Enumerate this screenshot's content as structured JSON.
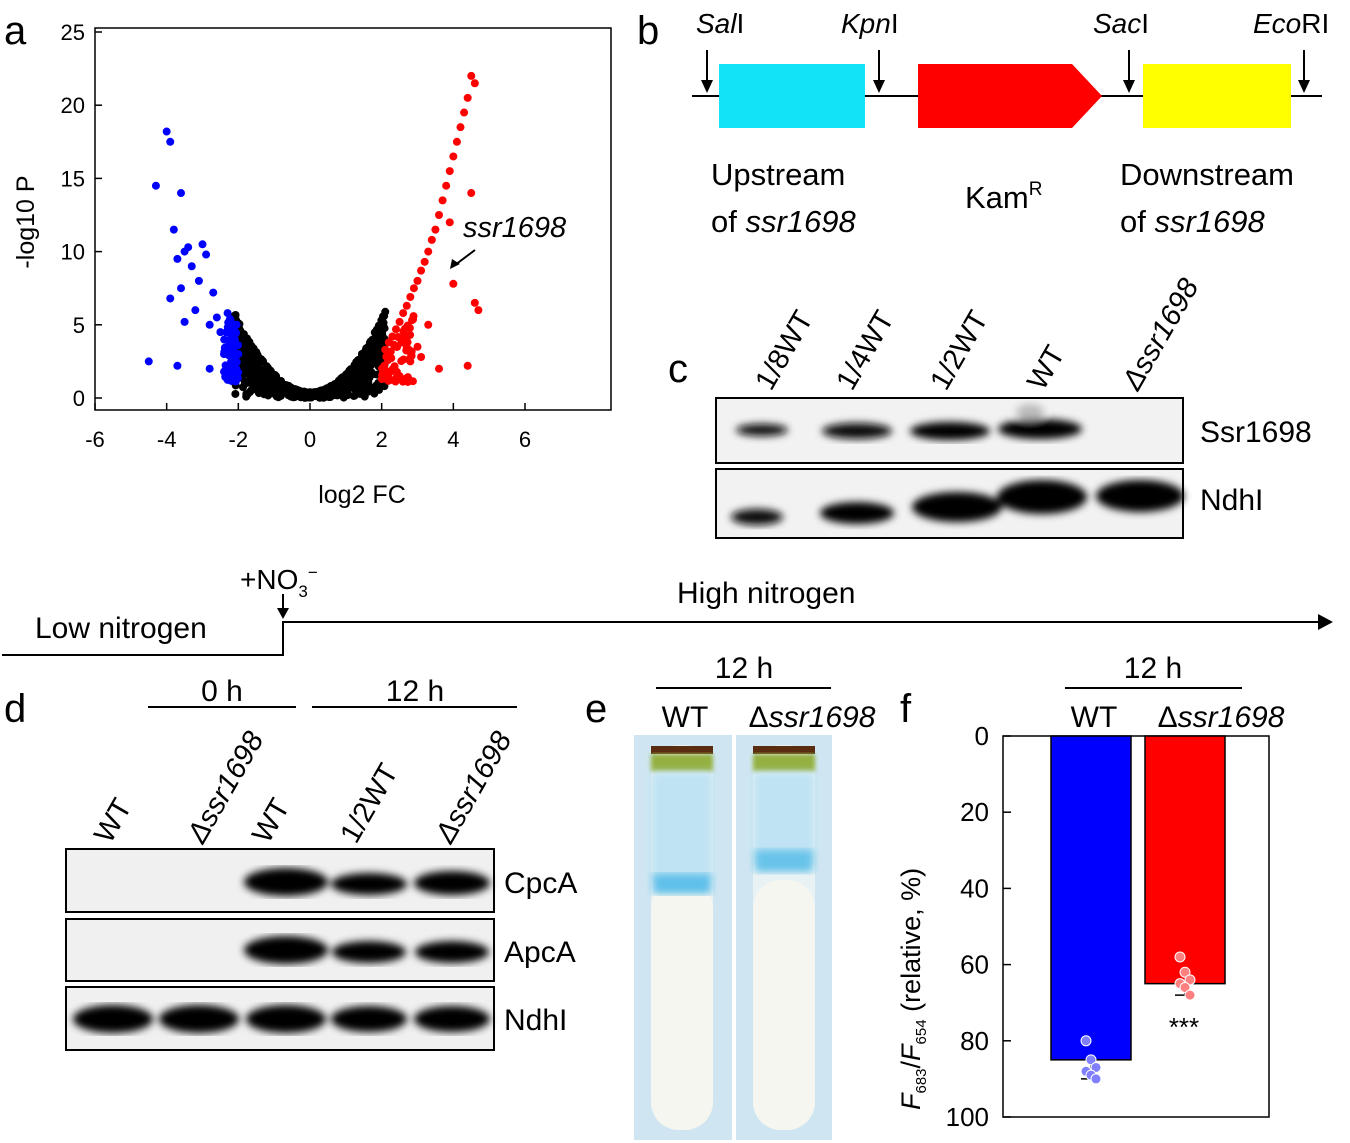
{
  "panel_letters": {
    "a": "a",
    "b": "b",
    "c": "c",
    "d": "d",
    "e": "e",
    "f": "f"
  },
  "panel_a": {
    "y_axis_label": "-log10 P",
    "x_axis_label": "log2 FC",
    "annotation": "ssr1698",
    "x_ticks": [
      "-6",
      "-4",
      "-2",
      "0",
      "2",
      "4",
      "6"
    ],
    "y_ticks": [
      "0",
      "5",
      "10",
      "15",
      "20",
      "25"
    ]
  },
  "panel_b": {
    "sites": {
      "sal_italic": "Sal",
      "sal_rest": "I",
      "kpn_italic": "Kpn",
      "kpn_rest": "I",
      "sac_italic": "Sac",
      "sac_rest": "I",
      "eco_italic": "Eco",
      "eco_rest": "RI"
    },
    "up_line1": "Upstream",
    "up_line2_prefix": "of ",
    "up_line2_italic": "ssr1698",
    "kam": "Kam",
    "kam_sup": "R",
    "down_line1": "Downstream",
    "down_line2_prefix": "of ",
    "down_line2_italic": "ssr1698",
    "colors": {
      "upstream": "#12e3f6",
      "kam": "#ff0000",
      "downstream": "#ffff00"
    }
  },
  "panel_c": {
    "lanes": [
      "1/8WT",
      "1/4WT",
      "1/2WT",
      "WT",
      "Δssr1698"
    ],
    "rows": [
      "Ssr1698",
      "NdhI"
    ]
  },
  "timeline": {
    "addition": "+NO",
    "addition_sub": "3",
    "addition_sup": "−",
    "low_label": "Low nitrogen",
    "high_label": "High nitrogen"
  },
  "panel_d": {
    "time_0": "0 h",
    "time_12": "12 h",
    "lanes": [
      "WT",
      "Δssr1698",
      "WT",
      "1/2WT",
      "Δssr1698"
    ],
    "rows": [
      "CpcA",
      "ApcA",
      "NdhI"
    ]
  },
  "panel_e": {
    "time": "12 h",
    "lane_wt": "WT",
    "lane_mut_delta": "Δ",
    "lane_mut_italic": "ssr1698"
  },
  "panel_f": {
    "time": "12 h",
    "label_wt": "WT",
    "label_mut_delta": "Δ",
    "label_mut_italic": "ssr1698",
    "y_label_f1": "F",
    "y_label_sub1": "683",
    "y_label_slash": "/",
    "y_label_f2": "F",
    "y_label_sub2": "654",
    "y_label_rest": " (relative, %)",
    "y_ticks": [
      "0",
      "20",
      "40",
      "60",
      "80",
      "100"
    ],
    "significance": "***",
    "colors": {
      "wt": "#0000ff",
      "mut": "#ff0000"
    }
  },
  "chart_data": [
    {
      "type": "scatter",
      "xlabel": "log2 FC",
      "ylabel": "-log10 P",
      "xlim": [
        -6,
        6
      ],
      "ylim": [
        0,
        25
      ],
      "series": [
        {
          "color": "#0000ff",
          "x": [
            -4.0,
            -3.9,
            -4.3,
            -3.6,
            -3.5,
            -3.4,
            -3.8,
            -3.7,
            -3.3,
            -3.0,
            -2.9,
            -3.1,
            -3.6,
            -3.2,
            -3.9,
            -2.7,
            -2.8,
            -3.5,
            -4.5,
            -2.5,
            -2.3,
            -2.6,
            -2.4,
            -2.2,
            -2.1,
            -2.4,
            -2.8,
            -2.0,
            -3.7,
            -2.3
          ],
          "y": [
            18.2,
            17.5,
            14.5,
            14.0,
            10.0,
            10.3,
            11.5,
            9.5,
            9.0,
            10.5,
            9.8,
            8.0,
            7.5,
            6.0,
            6.8,
            7.2,
            5.0,
            5.2,
            2.5,
            4.5,
            3.5,
            5.5,
            3.0,
            2.5,
            4.0,
            1.8,
            2.0,
            3.0,
            2.2,
            5.8
          ]
        },
        {
          "color": "#ff0000",
          "x": [
            4.5,
            4.6,
            4.4,
            4.3,
            4.2,
            4.1,
            4.0,
            3.9,
            3.8,
            3.7,
            3.6,
            3.5,
            3.4,
            3.3,
            3.2,
            3.1,
            3.0,
            2.9,
            2.8,
            2.7,
            2.6,
            2.5,
            2.4,
            2.3,
            2.2,
            2.1,
            4.6,
            4.5,
            3.9,
            4.0,
            4.7,
            3.6,
            3.0,
            2.8,
            2.5,
            2.2,
            3.3,
            4.4,
            2.6,
            3.1
          ],
          "y": [
            22.0,
            21.5,
            20.5,
            19.5,
            18.5,
            17.5,
            16.5,
            15.5,
            14.5,
            13.5,
            12.5,
            11.5,
            10.8,
            10.0,
            9.3,
            8.7,
            8.0,
            7.5,
            6.9,
            6.3,
            5.8,
            5.2,
            4.7,
            4.2,
            3.8,
            3.3,
            6.5,
            14.0,
            12.0,
            7.8,
            6.0,
            2.0,
            3.5,
            2.5,
            1.5,
            1.8,
            5.0,
            2.2,
            4.0,
            2.8
          ]
        }
      ]
    },
    {
      "type": "bar",
      "categories": [
        "WT",
        "Δssr1698"
      ],
      "values": [
        85,
        65
      ],
      "ylabel": "F683/F654 (relative, %)",
      "ylim": [
        0,
        100
      ],
      "y_inverted": true,
      "points": [
        [
          80,
          85,
          87,
          88,
          89,
          90
        ],
        [
          58,
          62,
          64,
          65,
          66,
          68
        ]
      ]
    }
  ]
}
